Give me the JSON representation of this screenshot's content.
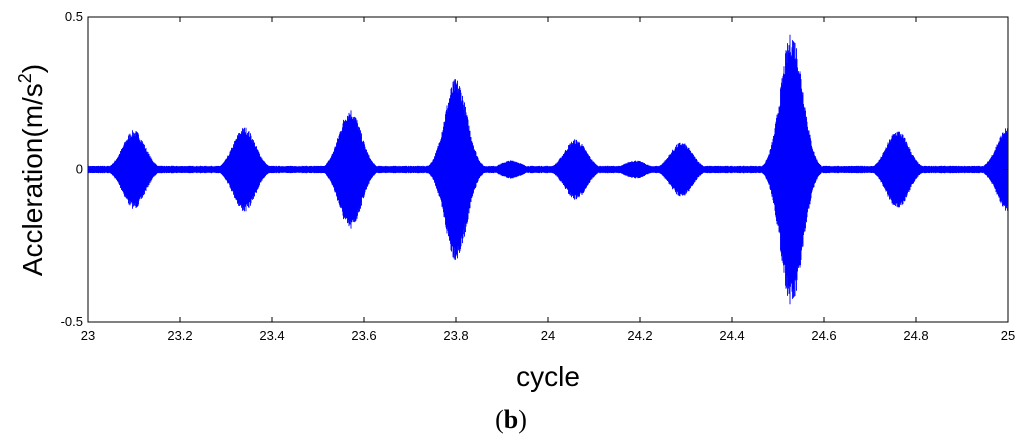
{
  "chart_data": {
    "type": "line",
    "title": "",
    "xlabel": "cycle",
    "ylabel_main": "Accleration(m/s",
    "ylabel_sup": "2",
    "ylabel_close": ")",
    "xlim": [
      23,
      25
    ],
    "ylim": [
      -0.5,
      0.5
    ],
    "x_ticks": [
      23,
      23.2,
      23.4,
      23.6,
      23.8,
      24,
      24.2,
      24.4,
      24.6,
      24.8,
      25
    ],
    "x_tick_labels": [
      "23",
      "23.2",
      "23.4",
      "23.6",
      "23.8",
      "24",
      "24.2",
      "24.4",
      "24.6",
      "24.8",
      "25"
    ],
    "y_ticks": [
      0.5,
      0,
      -0.5
    ],
    "y_tick_labels": [
      "0.5",
      "0",
      "-0.5"
    ],
    "grid": false,
    "line_color": "#0000ff",
    "baseline_noise_amplitude": 0.012,
    "bursts": [
      {
        "center": 23.1,
        "amplitude": 0.13
      },
      {
        "center": 23.34,
        "amplitude": 0.14
      },
      {
        "center": 23.57,
        "amplitude": 0.2
      },
      {
        "center": 23.8,
        "amplitude": 0.3
      },
      {
        "center": 23.92,
        "amplitude": 0.03
      },
      {
        "center": 24.06,
        "amplitude": 0.1
      },
      {
        "center": 24.19,
        "amplitude": 0.03
      },
      {
        "center": 24.29,
        "amplitude": 0.09
      },
      {
        "center": 24.53,
        "amplitude": 0.45
      },
      {
        "center": 24.76,
        "amplitude": 0.13
      },
      {
        "center": 25.0,
        "amplitude": 0.14
      }
    ]
  },
  "caption": {
    "open": "(",
    "letter": "b",
    "close": ")"
  }
}
